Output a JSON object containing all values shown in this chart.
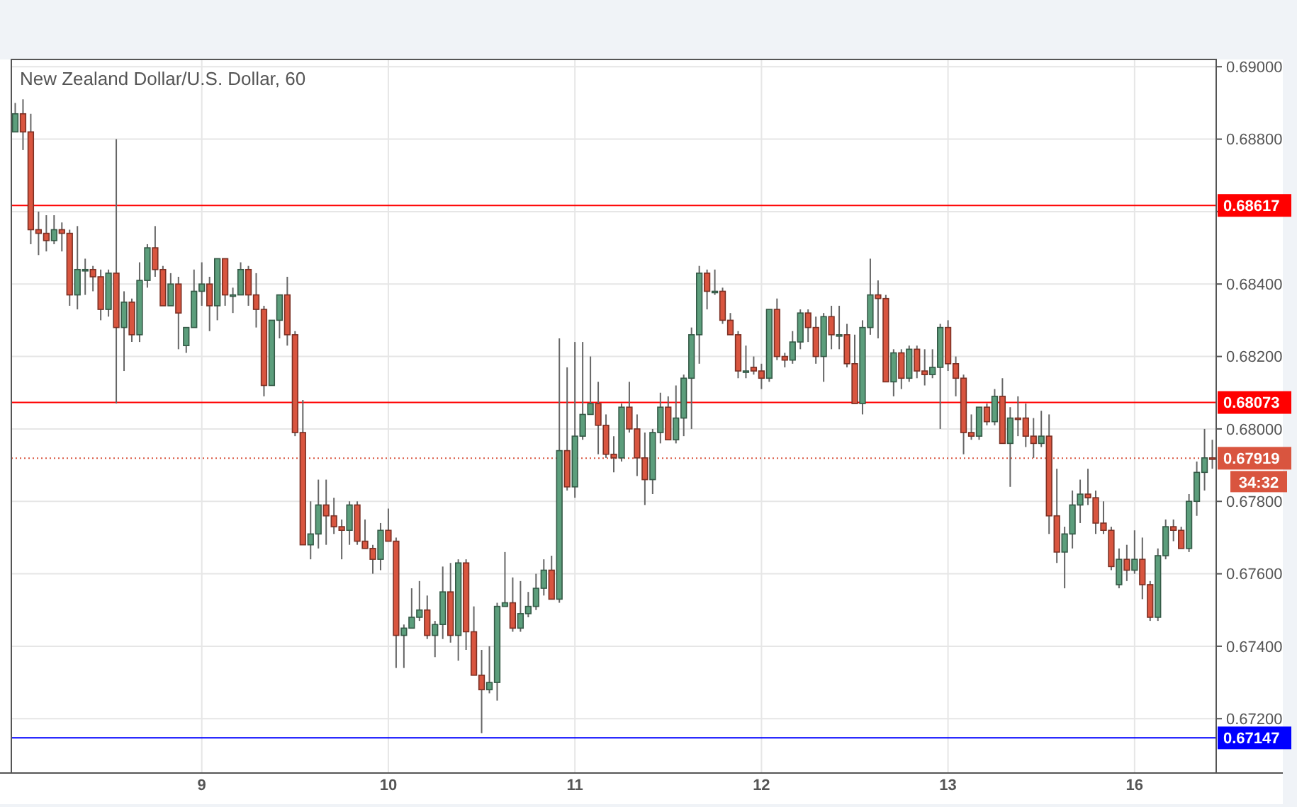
{
  "chart_data": {
    "type": "candlestick",
    "title": "New Zealand Dollar/U.S. Dollar, 60",
    "categories": [
      null,
      null,
      null,
      null,
      null,
      null,
      null,
      null,
      null,
      null,
      null,
      null,
      null,
      null,
      null,
      null,
      null,
      null,
      null,
      null,
      null,
      null,
      null,
      null,
      "9",
      null,
      null,
      null,
      null,
      null,
      null,
      null,
      null,
      null,
      null,
      null,
      null,
      null,
      null,
      null,
      null,
      null,
      null,
      null,
      null,
      null,
      null,
      null,
      "10",
      null,
      null,
      null,
      null,
      null,
      null,
      null,
      null,
      null,
      null,
      null,
      null,
      null,
      null,
      null,
      null,
      null,
      null,
      null,
      null,
      null,
      null,
      null,
      "11",
      null,
      null,
      null,
      null,
      null,
      null,
      null,
      null,
      null,
      null,
      null,
      null,
      null,
      null,
      null,
      null,
      null,
      null,
      null,
      null,
      null,
      null,
      null,
      "12",
      null,
      null,
      null,
      null,
      null,
      null,
      null,
      null,
      null,
      null,
      null,
      null,
      null,
      null,
      null,
      null,
      null,
      null,
      null,
      null,
      null,
      null,
      null,
      "13",
      null,
      null,
      null,
      null,
      null,
      null,
      null,
      null,
      null,
      null,
      null,
      null,
      null,
      null,
      null,
      null,
      null,
      null,
      null,
      null,
      null,
      null,
      null,
      "16",
      null,
      null,
      null,
      null,
      null,
      null,
      null,
      null,
      null,
      null
    ],
    "ohlc": [
      [
        0.6882,
        0.689,
        0.6882,
        0.6887
      ],
      [
        0.6887,
        0.6891,
        0.6877,
        0.6882
      ],
      [
        0.6882,
        0.6887,
        0.6851,
        0.6855
      ],
      [
        0.6855,
        0.686,
        0.6848,
        0.6854
      ],
      [
        0.6854,
        0.6859,
        0.6849,
        0.6852
      ],
      [
        0.6852,
        0.6859,
        0.6851,
        0.6855
      ],
      [
        0.6855,
        0.6857,
        0.6849,
        0.6854
      ],
      [
        0.6854,
        0.6855,
        0.6834,
        0.6837
      ],
      [
        0.6837,
        0.6856,
        0.6833,
        0.6844
      ],
      [
        0.6844,
        0.6847,
        0.6837,
        0.6844
      ],
      [
        0.6844,
        0.6845,
        0.6838,
        0.6842
      ],
      [
        0.6842,
        0.6844,
        0.683,
        0.6833
      ],
      [
        0.6833,
        0.6844,
        0.6831,
        0.6843
      ],
      [
        0.6843,
        0.688,
        0.6807,
        0.6828
      ],
      [
        0.6828,
        0.6838,
        0.6816,
        0.6835
      ],
      [
        0.6835,
        0.6836,
        0.6824,
        0.6826
      ],
      [
        0.6826,
        0.6846,
        0.6824,
        0.6841
      ],
      [
        0.6841,
        0.6851,
        0.6839,
        0.685
      ],
      [
        0.685,
        0.6856,
        0.6842,
        0.6844
      ],
      [
        0.6844,
        0.6845,
        0.6834,
        0.6834
      ],
      [
        0.6834,
        0.6843,
        0.6834,
        0.684
      ],
      [
        0.684,
        0.6842,
        0.6822,
        0.6832
      ],
      [
        0.6823,
        0.6828,
        0.6821,
        0.6828
      ],
      [
        0.6828,
        0.6844,
        0.6828,
        0.6838
      ],
      [
        0.6838,
        0.6846,
        0.6834,
        0.684
      ],
      [
        0.684,
        0.6842,
        0.6827,
        0.6834
      ],
      [
        0.6834,
        0.6847,
        0.683,
        0.6847
      ],
      [
        0.6847,
        0.6847,
        0.6834,
        0.6837
      ],
      [
        0.6837,
        0.6839,
        0.6832,
        0.6837
      ],
      [
        0.6837,
        0.6846,
        0.6837,
        0.6844
      ],
      [
        0.6844,
        0.6845,
        0.6834,
        0.6837
      ],
      [
        0.6837,
        0.6843,
        0.6828,
        0.6833
      ],
      [
        0.6833,
        0.6834,
        0.6809,
        0.6812
      ],
      [
        0.6812,
        0.683,
        0.6812,
        0.683
      ],
      [
        0.683,
        0.6837,
        0.6825,
        0.6837
      ],
      [
        0.6837,
        0.6842,
        0.6823,
        0.6826
      ],
      [
        0.6826,
        0.6827,
        0.6798,
        0.6799
      ],
      [
        0.6799,
        0.6808,
        0.6768,
        0.6768
      ],
      [
        0.6768,
        0.678,
        0.6764,
        0.6771
      ],
      [
        0.6771,
        0.6786,
        0.6767,
        0.6779
      ],
      [
        0.6779,
        0.6786,
        0.6768,
        0.6776
      ],
      [
        0.6776,
        0.6781,
        0.6771,
        0.6773
      ],
      [
        0.6773,
        0.6775,
        0.6764,
        0.6772
      ],
      [
        0.6772,
        0.678,
        0.6768,
        0.6779
      ],
      [
        0.6779,
        0.678,
        0.6768,
        0.6769
      ],
      [
        0.6769,
        0.6775,
        0.6767,
        0.6767
      ],
      [
        0.6767,
        0.6768,
        0.676,
        0.6764
      ],
      [
        0.6764,
        0.6774,
        0.6761,
        0.6772
      ],
      [
        0.6772,
        0.6778,
        0.6769,
        0.6769
      ],
      [
        0.6769,
        0.677,
        0.6734,
        0.6743
      ],
      [
        0.6743,
        0.6746,
        0.6734,
        0.6745
      ],
      [
        0.6745,
        0.6756,
        0.6745,
        0.6748
      ],
      [
        0.6748,
        0.6758,
        0.6747,
        0.675
      ],
      [
        0.675,
        0.6754,
        0.6742,
        0.6743
      ],
      [
        0.6743,
        0.6747,
        0.6737,
        0.6746
      ],
      [
        0.6746,
        0.6762,
        0.6742,
        0.6755
      ],
      [
        0.6755,
        0.6763,
        0.6741,
        0.6743
      ],
      [
        0.6743,
        0.6764,
        0.6736,
        0.6763
      ],
      [
        0.6763,
        0.6764,
        0.6739,
        0.6744
      ],
      [
        0.6744,
        0.6751,
        0.6732,
        0.6732
      ],
      [
        0.6732,
        0.6739,
        0.6716,
        0.6728
      ],
      [
        0.6728,
        0.674,
        0.6727,
        0.673
      ],
      [
        0.673,
        0.6752,
        0.6725,
        0.6751
      ],
      [
        0.6751,
        0.6766,
        0.6751,
        0.6752
      ],
      [
        0.6752,
        0.6759,
        0.6744,
        0.6745
      ],
      [
        0.6745,
        0.6758,
        0.6744,
        0.6749
      ],
      [
        0.6749,
        0.6755,
        0.6748,
        0.6751
      ],
      [
        0.6751,
        0.676,
        0.675,
        0.6756
      ],
      [
        0.6756,
        0.6764,
        0.6754,
        0.6761
      ],
      [
        0.6761,
        0.6765,
        0.6753,
        0.6753
      ],
      [
        0.6753,
        0.6825,
        0.6752,
        0.6794
      ],
      [
        0.6794,
        0.6817,
        0.6783,
        0.6784
      ],
      [
        0.6784,
        0.6824,
        0.6781,
        0.6798
      ],
      [
        0.6798,
        0.6824,
        0.6797,
        0.6804
      ],
      [
        0.6804,
        0.682,
        0.6804,
        0.6807
      ],
      [
        0.6807,
        0.6813,
        0.6793,
        0.6801
      ],
      [
        0.6801,
        0.6804,
        0.6792,
        0.6793
      ],
      [
        0.6793,
        0.6798,
        0.6788,
        0.6792
      ],
      [
        0.6792,
        0.6807,
        0.6791,
        0.6806
      ],
      [
        0.6806,
        0.6813,
        0.6799,
        0.68
      ],
      [
        0.68,
        0.6804,
        0.6787,
        0.6792
      ],
      [
        0.6792,
        0.6799,
        0.6779,
        0.6786
      ],
      [
        0.6786,
        0.68,
        0.6782,
        0.6799
      ],
      [
        0.6799,
        0.681,
        0.6796,
        0.6806
      ],
      [
        0.6806,
        0.6809,
        0.6797,
        0.6797
      ],
      [
        0.6797,
        0.6812,
        0.6796,
        0.6803
      ],
      [
        0.6803,
        0.6815,
        0.6798,
        0.6814
      ],
      [
        0.6814,
        0.6828,
        0.68,
        0.6826
      ],
      [
        0.6826,
        0.6845,
        0.6818,
        0.6843
      ],
      [
        0.6843,
        0.6844,
        0.6833,
        0.6838
      ],
      [
        0.6838,
        0.6844,
        0.6837,
        0.6838
      ],
      [
        0.6838,
        0.6839,
        0.6829,
        0.683
      ],
      [
        0.683,
        0.6832,
        0.6826,
        0.6826
      ],
      [
        0.6826,
        0.6827,
        0.6814,
        0.6816
      ],
      [
        0.6816,
        0.6823,
        0.6814,
        0.6816
      ],
      [
        0.6817,
        0.682,
        0.6815,
        0.6816
      ],
      [
        0.6816,
        0.6818,
        0.6811,
        0.6814
      ],
      [
        0.6814,
        0.6833,
        0.6813,
        0.6833
      ],
      [
        0.6833,
        0.6836,
        0.6819,
        0.682
      ],
      [
        0.682,
        0.6821,
        0.6817,
        0.6819
      ],
      [
        0.6819,
        0.6827,
        0.6818,
        0.6824
      ],
      [
        0.6824,
        0.6833,
        0.6822,
        0.6832
      ],
      [
        0.6832,
        0.6833,
        0.6824,
        0.6828
      ],
      [
        0.6828,
        0.6831,
        0.6818,
        0.682
      ],
      [
        0.682,
        0.6832,
        0.6813,
        0.6831
      ],
      [
        0.6831,
        0.6834,
        0.6822,
        0.6826
      ],
      [
        0.6826,
        0.6834,
        0.6822,
        0.6826
      ],
      [
        0.6826,
        0.6829,
        0.6817,
        0.6818
      ],
      [
        0.6818,
        0.6826,
        0.6807,
        0.6807
      ],
      [
        0.6807,
        0.683,
        0.6804,
        0.6828
      ],
      [
        0.6828,
        0.6847,
        0.6826,
        0.6837
      ],
      [
        0.6837,
        0.6841,
        0.6825,
        0.6836
      ],
      [
        0.6836,
        0.6837,
        0.6813,
        0.6813
      ],
      [
        0.6813,
        0.6822,
        0.6809,
        0.6821
      ],
      [
        0.6821,
        0.6822,
        0.6811,
        0.6814
      ],
      [
        0.6814,
        0.6823,
        0.6813,
        0.6822
      ],
      [
        0.6822,
        0.6823,
        0.6814,
        0.6816
      ],
      [
        0.6816,
        0.6822,
        0.6812,
        0.6815
      ],
      [
        0.6815,
        0.6822,
        0.6814,
        0.6817
      ],
      [
        0.6817,
        0.6829,
        0.68,
        0.6828
      ],
      [
        0.6828,
        0.683,
        0.6816,
        0.6818
      ],
      [
        0.6818,
        0.682,
        0.6809,
        0.6814
      ],
      [
        0.6814,
        0.6815,
        0.6793,
        0.6799
      ],
      [
        0.6799,
        0.6804,
        0.6797,
        0.6798
      ],
      [
        0.6798,
        0.6806,
        0.6797,
        0.6806
      ],
      [
        0.6806,
        0.6807,
        0.6801,
        0.6802
      ],
      [
        0.6802,
        0.6811,
        0.6801,
        0.6809
      ],
      [
        0.6809,
        0.6814,
        0.6796,
        0.6796
      ],
      [
        0.6796,
        0.6806,
        0.6784,
        0.6803
      ],
      [
        0.6803,
        0.6809,
        0.6798,
        0.6803
      ],
      [
        0.6803,
        0.6807,
        0.6795,
        0.6798
      ],
      [
        0.6798,
        0.6803,
        0.6792,
        0.6796
      ],
      [
        0.6796,
        0.6805,
        0.6795,
        0.6798
      ],
      [
        0.6798,
        0.6804,
        0.6771,
        0.6776
      ],
      [
        0.6776,
        0.6789,
        0.6763,
        0.6766
      ],
      [
        0.6766,
        0.6773,
        0.6756,
        0.6771
      ],
      [
        0.6771,
        0.6783,
        0.6767,
        0.6779
      ],
      [
        0.6779,
        0.6786,
        0.6774,
        0.6782
      ],
      [
        0.6782,
        0.6789,
        0.6779,
        0.6781
      ],
      [
        0.6781,
        0.6783,
        0.6771,
        0.6774
      ],
      [
        0.6774,
        0.678,
        0.6771,
        0.6772
      ],
      [
        0.6772,
        0.6773,
        0.6761,
        0.6762
      ],
      [
        0.6757,
        0.6767,
        0.6756,
        0.6764
      ],
      [
        0.6764,
        0.6768,
        0.6758,
        0.6761
      ],
      [
        0.6761,
        0.6772,
        0.676,
        0.6764
      ],
      [
        0.6764,
        0.677,
        0.6753,
        0.6757
      ],
      [
        0.6757,
        0.6758,
        0.6747,
        0.6748
      ],
      [
        0.6748,
        0.6767,
        0.6747,
        0.6765
      ],
      [
        0.6765,
        0.6775,
        0.6764,
        0.6773
      ],
      [
        0.6773,
        0.6775,
        0.6769,
        0.6772
      ],
      [
        0.6772,
        0.6773,
        0.6767,
        0.6767
      ],
      [
        0.6767,
        0.6782,
        0.6766,
        0.678
      ],
      [
        0.678,
        0.6791,
        0.6776,
        0.6788
      ],
      [
        0.6788,
        0.68,
        0.6783,
        0.6792
      ],
      [
        0.6792,
        0.6797,
        0.6789,
        0.67919
      ]
    ],
    "colors": [
      "#5c9e7c",
      "#d9553f",
      "#d9553f",
      "#d9553f",
      "#d9553f",
      "#5c9e7c",
      "#d9553f",
      "#d9553f",
      "#5c9e7c",
      "#5c9e7c",
      "#d9553f",
      "#d9553f",
      "#5c9e7c",
      "#d9553f",
      "#5c9e7c",
      "#d9553f",
      "#5c9e7c",
      "#5c9e7c",
      "#d9553f",
      "#d9553f",
      "#5c9e7c",
      "#d9553f",
      "#5c9e7c",
      "#5c9e7c",
      "#5c9e7c",
      "#d9553f",
      "#5c9e7c",
      "#d9553f",
      "#5c9e7c",
      "#5c9e7c",
      "#d9553f",
      "#d9553f",
      "#d9553f",
      "#5c9e7c",
      "#5c9e7c",
      "#d9553f",
      "#d9553f",
      "#d9553f",
      "#5c9e7c",
      "#5c9e7c",
      "#d9553f",
      "#d9553f",
      "#d9553f",
      "#5c9e7c",
      "#d9553f",
      "#d9553f",
      "#d9553f",
      "#5c9e7c",
      "#d9553f",
      "#d9553f",
      "#5c9e7c",
      "#5c9e7c",
      "#5c9e7c",
      "#d9553f",
      "#5c9e7c",
      "#5c9e7c",
      "#d9553f",
      "#5c9e7c",
      "#d9553f",
      "#d9553f",
      "#d9553f",
      "#5c9e7c",
      "#5c9e7c",
      "#5c9e7c",
      "#d9553f",
      "#5c9e7c",
      "#5c9e7c",
      "#5c9e7c",
      "#5c9e7c",
      "#d9553f",
      "#5c9e7c",
      "#d9553f",
      "#5c9e7c",
      "#5c9e7c",
      "#5c9e7c",
      "#d9553f",
      "#d9553f",
      "#d9553f",
      "#5c9e7c",
      "#d9553f",
      "#d9553f",
      "#d9553f",
      "#5c9e7c",
      "#5c9e7c",
      "#d9553f",
      "#5c9e7c",
      "#5c9e7c",
      "#5c9e7c",
      "#5c9e7c",
      "#d9553f",
      "#5c9e7c",
      "#d9553f",
      "#d9553f",
      "#d9553f",
      "#5c9e7c",
      "#d9553f",
      "#d9553f",
      "#5c9e7c",
      "#d9553f",
      "#d9553f",
      "#5c9e7c",
      "#5c9e7c",
      "#d9553f",
      "#d9553f",
      "#5c9e7c",
      "#d9553f",
      "#5c9e7c",
      "#d9553f",
      "#d9553f",
      "#5c9e7c",
      "#5c9e7c",
      "#d9553f",
      "#d9553f",
      "#5c9e7c",
      "#d9553f",
      "#5c9e7c",
      "#d9553f",
      "#d9553f",
      "#5c9e7c",
      "#5c9e7c",
      "#d9553f",
      "#d9553f",
      "#d9553f",
      "#d9553f",
      "#5c9e7c",
      "#d9553f",
      "#5c9e7c",
      "#d9553f",
      "#5c9e7c",
      "#d9553f",
      "#d9553f",
      "#d9553f",
      "#5c9e7c",
      "#d9553f",
      "#d9553f",
      "#5c9e7c",
      "#5c9e7c",
      "#5c9e7c",
      "#d9553f",
      "#d9553f",
      "#d9553f",
      "#d9553f",
      "#5c9e7c",
      "#d9553f",
      "#5c9e7c",
      "#d9553f",
      "#d9553f",
      "#5c9e7c",
      "#5c9e7c",
      "#d9553f",
      "#d9553f",
      "#5c9e7c",
      "#5c9e7c",
      "#5c9e7c",
      "#d9553f"
    ],
    "ylim": [
      0.6705,
      0.6902
    ],
    "yticks": [
      {
        "value": 0.672,
        "label": "0.67200"
      },
      {
        "value": 0.674,
        "label": "0.67400"
      },
      {
        "value": 0.676,
        "label": "0.67600"
      },
      {
        "value": 0.678,
        "label": "0.67800"
      },
      {
        "value": 0.68,
        "label": "0.68000"
      },
      {
        "value": 0.682,
        "label": "0.68200"
      },
      {
        "value": 0.684,
        "label": "0.68400"
      },
      {
        "value": 0.686,
        "label": null
      },
      {
        "value": 0.688,
        "label": "0.68800"
      },
      {
        "value": 0.69,
        "label": "0.69000"
      }
    ],
    "grid": true,
    "ref_lines": [
      {
        "axis": "y",
        "value": 0.68617,
        "label": "0.68617",
        "color": "#ff0000",
        "line_style": "solid"
      },
      {
        "axis": "y",
        "value": 0.68073,
        "label": "0.68073",
        "color": "#ff0000",
        "line_style": "solid"
      },
      {
        "axis": "y",
        "value": 0.67919,
        "label": "0.67919",
        "color": "#d9553f",
        "line_style": "dotted"
      },
      {
        "axis": "y",
        "value": 0.67147,
        "label": "0.67147",
        "color": "#0000ff",
        "line_style": "solid"
      }
    ],
    "annotations": [
      "34:32"
    ]
  }
}
